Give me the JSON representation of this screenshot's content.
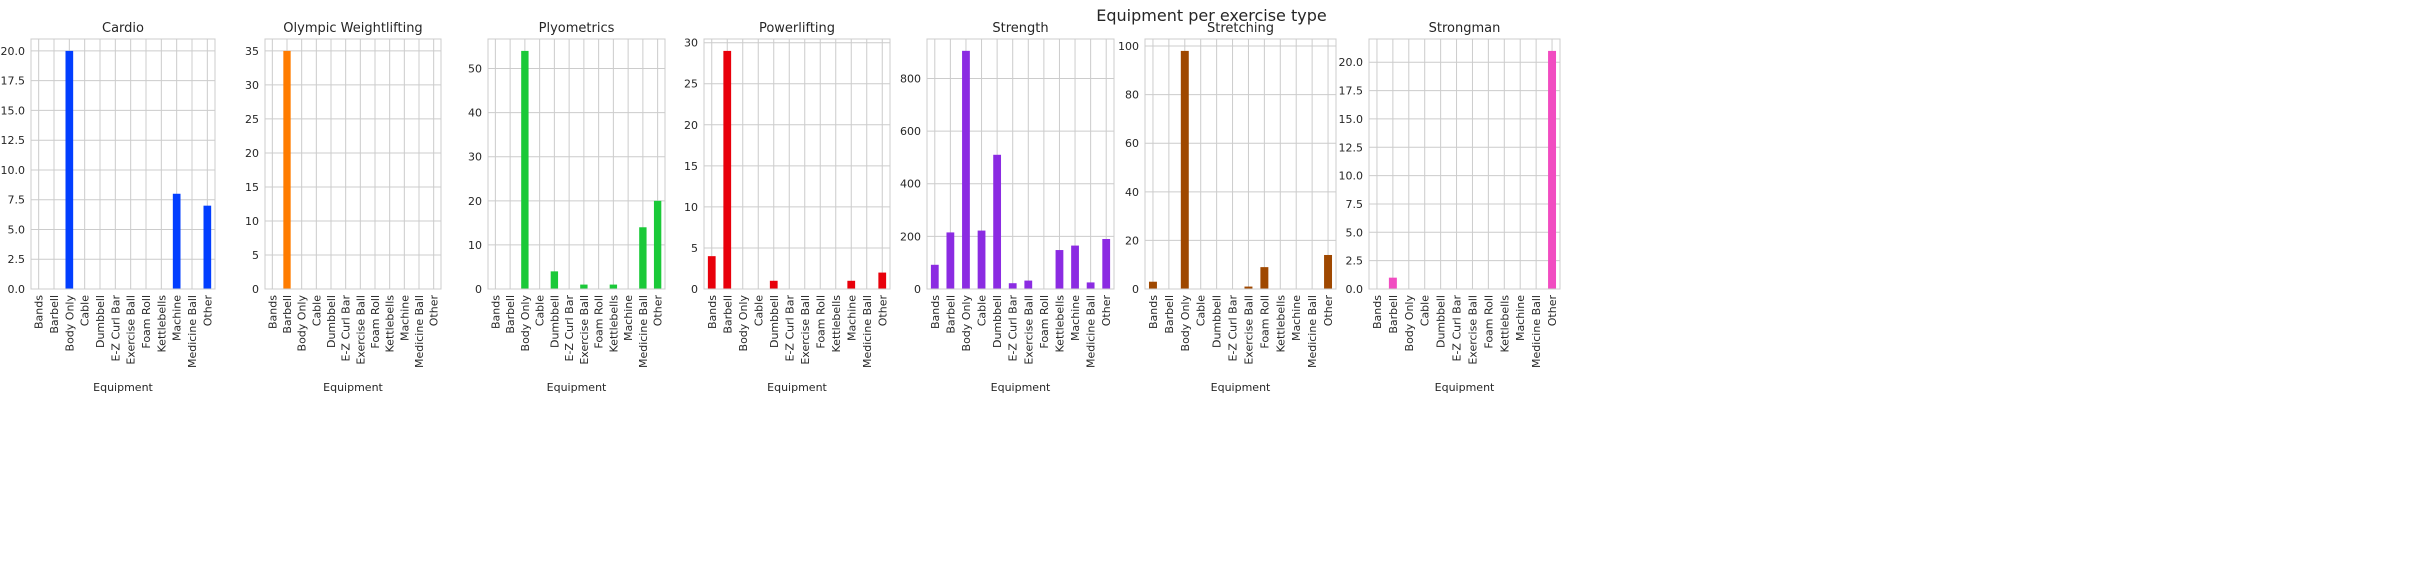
{
  "suptitle": "Equipment per exercise type",
  "chart_data": [
    {
      "type": "bar",
      "title": "Cardio",
      "xlabel": "Equipment",
      "ylabel": "",
      "color": "#023eff",
      "categories": [
        "Bands",
        "Barbell",
        "Body Only",
        "Cable",
        "Dumbbell",
        "E-Z Curl Bar",
        "Exercise Ball",
        "Foam Roll",
        "Kettlebells",
        "Machine",
        "Medicine Ball",
        "Other"
      ],
      "values": [
        0,
        0,
        20,
        0,
        0,
        0,
        0,
        0,
        0,
        8,
        0,
        7
      ],
      "ylim": [
        0,
        21
      ],
      "yticks": [
        0,
        2.5,
        5,
        7.5,
        10,
        12.5,
        15,
        17.5,
        20
      ],
      "ytick_labels": [
        "0.0",
        "2.5",
        "5.0",
        "7.5",
        "10.0",
        "12.5",
        "15.0",
        "17.5",
        "20.0"
      ],
      "grid": true
    },
    {
      "type": "bar",
      "title": "Olympic Weightlifting",
      "xlabel": "Equipment",
      "ylabel": "",
      "color": "#ff7c00",
      "categories": [
        "Bands",
        "Barbell",
        "Body Only",
        "Cable",
        "Dumbbell",
        "E-Z Curl Bar",
        "Exercise Ball",
        "Foam Roll",
        "Kettlebells",
        "Machine",
        "Medicine Ball",
        "Other"
      ],
      "values": [
        0,
        35,
        0,
        0,
        0,
        0,
        0,
        0,
        0,
        0,
        0,
        0
      ],
      "ylim": [
        0,
        36.75
      ],
      "yticks": [
        0,
        5,
        10,
        15,
        20,
        25,
        30,
        35
      ],
      "ytick_labels": [
        "0",
        "5",
        "10",
        "15",
        "20",
        "25",
        "30",
        "35"
      ],
      "grid": true
    },
    {
      "type": "bar",
      "title": "Plyometrics",
      "xlabel": "Equipment",
      "ylabel": "",
      "color": "#1ac938",
      "categories": [
        "Bands",
        "Barbell",
        "Body Only",
        "Cable",
        "Dumbbell",
        "E-Z Curl Bar",
        "Exercise Ball",
        "Foam Roll",
        "Kettlebells",
        "Machine",
        "Medicine Ball",
        "Other"
      ],
      "values": [
        0,
        0,
        54,
        0,
        4,
        0,
        1,
        0,
        1,
        0,
        14,
        20
      ],
      "ylim": [
        0,
        56.7
      ],
      "yticks": [
        0,
        10,
        20,
        30,
        40,
        50
      ],
      "ytick_labels": [
        "0",
        "10",
        "20",
        "30",
        "40",
        "50"
      ],
      "grid": true
    },
    {
      "type": "bar",
      "title": "Powerlifting",
      "xlabel": "Equipment",
      "ylabel": "",
      "color": "#e8000b",
      "categories": [
        "Bands",
        "Barbell",
        "Body Only",
        "Cable",
        "Dumbbell",
        "E-Z Curl Bar",
        "Exercise Ball",
        "Foam Roll",
        "Kettlebells",
        "Machine",
        "Medicine Ball",
        "Other"
      ],
      "values": [
        4,
        29,
        0,
        0,
        1,
        0,
        0,
        0,
        0,
        1,
        0,
        2
      ],
      "ylim": [
        0,
        30.45
      ],
      "yticks": [
        0,
        5,
        10,
        15,
        20,
        25,
        30
      ],
      "ytick_labels": [
        "0",
        "5",
        "10",
        "15",
        "20",
        "25",
        "30"
      ],
      "grid": true
    },
    {
      "type": "bar",
      "title": "Strength",
      "xlabel": "Equipment",
      "ylabel": "",
      "color": "#8b2be2",
      "categories": [
        "Bands",
        "Barbell",
        "Body Only",
        "Cable",
        "Dumbbell",
        "E-Z Curl Bar",
        "Exercise Ball",
        "Foam Roll",
        "Kettlebells",
        "Machine",
        "Medicine Ball",
        "Other"
      ],
      "values": [
        92,
        215,
        905,
        222,
        510,
        22,
        32,
        0,
        148,
        165,
        25,
        190
      ],
      "ylim": [
        0,
        950
      ],
      "yticks": [
        0,
        200,
        400,
        600,
        800
      ],
      "ytick_labels": [
        "0",
        "200",
        "400",
        "600",
        "800"
      ],
      "grid": true
    },
    {
      "type": "bar",
      "title": "Stretching",
      "xlabel": "Equipment",
      "ylabel": "",
      "color": "#9f4800",
      "categories": [
        "Bands",
        "Barbell",
        "Body Only",
        "Cable",
        "Dumbbell",
        "E-Z Curl Bar",
        "Exercise Ball",
        "Foam Roll",
        "Kettlebells",
        "Machine",
        "Medicine Ball",
        "Other"
      ],
      "values": [
        3,
        0,
        98,
        0,
        0,
        0,
        1,
        9,
        0,
        0,
        0,
        14
      ],
      "ylim": [
        0,
        102.9
      ],
      "yticks": [
        0,
        20,
        40,
        60,
        80,
        100
      ],
      "ytick_labels": [
        "0",
        "20",
        "40",
        "60",
        "80",
        "100"
      ],
      "grid": true
    },
    {
      "type": "bar",
      "title": "Strongman",
      "xlabel": "Equipment",
      "ylabel": "",
      "color": "#f14cc1",
      "categories": [
        "Bands",
        "Barbell",
        "Body Only",
        "Cable",
        "Dumbbell",
        "E-Z Curl Bar",
        "Exercise Ball",
        "Foam Roll",
        "Kettlebells",
        "Machine",
        "Medicine Ball",
        "Other"
      ],
      "values": [
        0,
        1,
        0,
        0,
        0,
        0,
        0,
        0,
        0,
        0,
        0,
        21
      ],
      "ylim": [
        0,
        22.05
      ],
      "yticks": [
        0,
        2.5,
        5,
        7.5,
        10,
        12.5,
        15,
        17.5,
        20
      ],
      "ytick_labels": [
        "0.0",
        "2.5",
        "5.0",
        "7.5",
        "10.0",
        "12.5",
        "15.0",
        "17.5",
        "20.0"
      ],
      "grid": true
    }
  ]
}
